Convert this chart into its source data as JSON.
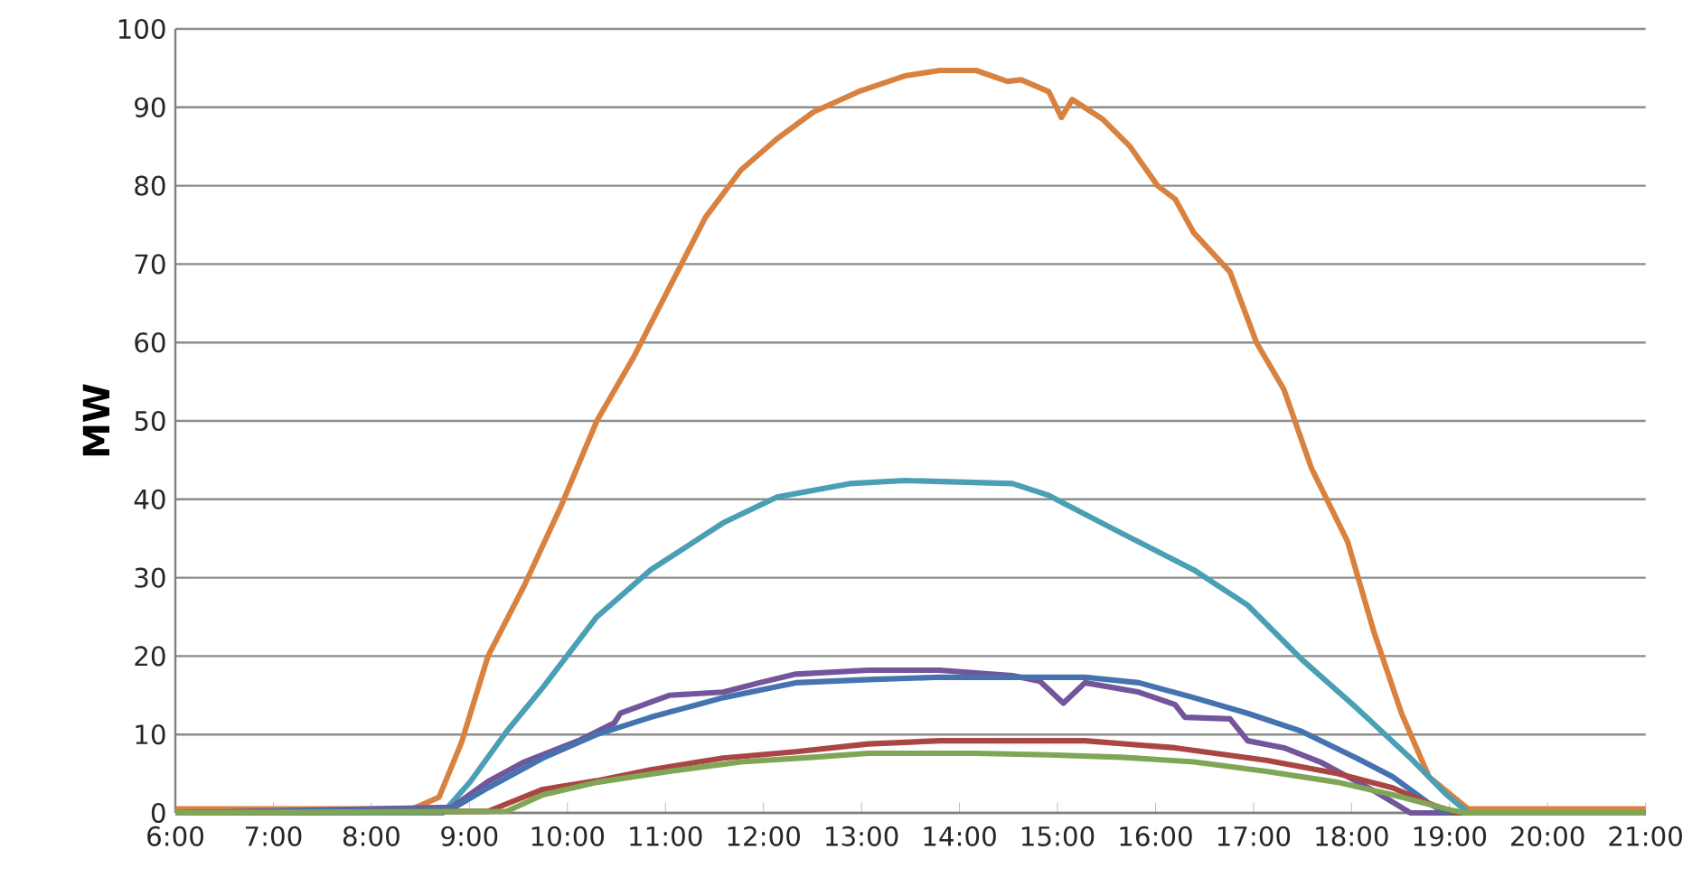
{
  "chart_data": {
    "type": "line",
    "ylabel": "MW",
    "grid": "y",
    "marker": "none",
    "line_style": "solid",
    "xlim": [
      6,
      21
    ],
    "ylim": [
      0,
      100
    ],
    "xticks": [
      {
        "value": 6,
        "label": "6:00"
      },
      {
        "value": 7,
        "label": "7:00"
      },
      {
        "value": 8,
        "label": "8:00"
      },
      {
        "value": 9,
        "label": "9:00"
      },
      {
        "value": 10,
        "label": "10:00"
      },
      {
        "value": 11,
        "label": "11:00"
      },
      {
        "value": 12,
        "label": "12:00"
      },
      {
        "value": 13,
        "label": "13:00"
      },
      {
        "value": 14,
        "label": "14:00"
      },
      {
        "value": 15,
        "label": "15:00"
      },
      {
        "value": 16,
        "label": "16:00"
      },
      {
        "value": 17,
        "label": "17:00"
      },
      {
        "value": 18,
        "label": "18:00"
      },
      {
        "value": 19,
        "label": "19:00"
      },
      {
        "value": 20,
        "label": "20:00"
      },
      {
        "value": 21,
        "label": "21:00"
      }
    ],
    "yticks": [
      0,
      10,
      20,
      30,
      40,
      50,
      60,
      70,
      80,
      90,
      100
    ],
    "series": [
      {
        "color": "#d9823f",
        "x": [
          6,
          8.42,
          8.69,
          8.92,
          9.19,
          9.56,
          9.93,
          10.3,
          10.67,
          11.04,
          11.41,
          11.77,
          12.14,
          12.51,
          12.97,
          13.44,
          13.8,
          14.17,
          14.49,
          14.63,
          14.91,
          15.04,
          15.15,
          15.46,
          15.74,
          16.02,
          16.2,
          16.39,
          16.76,
          17.03,
          17.31,
          17.59,
          17.96,
          18.23,
          18.51,
          18.79,
          19.19,
          21
        ],
        "values": [
          0.5,
          0.5,
          2,
          9,
          20,
          29,
          39,
          50,
          58,
          67,
          76,
          82,
          86,
          89.4,
          92,
          94,
          94.7,
          94.7,
          93.3,
          93.5,
          92,
          88.7,
          91,
          88.5,
          85,
          80,
          78.3,
          74,
          69,
          60,
          54,
          44,
          34.6,
          23,
          12.7,
          4.6,
          0.5,
          0.5
        ]
      },
      {
        "color": "#4a9fb5",
        "x": [
          6,
          8.73,
          9.01,
          9.38,
          9.75,
          10.3,
          10.85,
          11.59,
          12.14,
          12.88,
          13.44,
          14.54,
          14.91,
          15.65,
          16.39,
          16.94,
          17.49,
          18.05,
          18.6,
          18.97,
          19.19,
          21
        ],
        "values": [
          0,
          0,
          4,
          10.4,
          16,
          25,
          31,
          37,
          40.3,
          42,
          42.4,
          42,
          40.5,
          35.7,
          31,
          26.5,
          19.6,
          13.4,
          7,
          2.3,
          0,
          0
        ]
      },
      {
        "color": "#72559a",
        "x": [
          6,
          8.82,
          9.19,
          9.56,
          10.11,
          10.48,
          10.54,
          11.04,
          11.59,
          11.96,
          12.33,
          13.07,
          13.8,
          14.54,
          14.82,
          15.06,
          15.28,
          15.83,
          16.2,
          16.3,
          16.76,
          16.94,
          17.31,
          17.68,
          18.23,
          18.6,
          21
        ],
        "values": [
          0,
          0.7,
          4,
          6.5,
          9.2,
          11.5,
          12.7,
          15,
          15.4,
          16.6,
          17.7,
          18.2,
          18.2,
          17.5,
          16.8,
          14,
          16.6,
          15.4,
          13.8,
          12.2,
          12,
          9.2,
          8.3,
          6.5,
          2.8,
          0,
          0
        ]
      },
      {
        "color": "#4473b0",
        "x": [
          6,
          8.82,
          9.19,
          9.75,
          10.3,
          10.85,
          11.59,
          12.33,
          13.07,
          13.8,
          14.54,
          15.28,
          15.83,
          16.39,
          16.94,
          17.49,
          18.05,
          18.42,
          18.79,
          18.97,
          21
        ],
        "values": [
          0,
          0.5,
          3.2,
          7,
          10,
          12.2,
          14.7,
          16.6,
          17,
          17.3,
          17.3,
          17.3,
          16.6,
          14.7,
          12.7,
          10.4,
          7,
          4.6,
          1.2,
          0,
          0
        ]
      },
      {
        "color": "#a94643",
        "x": [
          6,
          9.19,
          9.47,
          9.75,
          10.3,
          10.85,
          11.59,
          12.33,
          13.07,
          13.8,
          14.54,
          15.28,
          16.2,
          17.13,
          17.86,
          18.42,
          18.79,
          19.06,
          21
        ],
        "values": [
          0,
          0.2,
          1.6,
          3,
          4.1,
          5.5,
          7,
          7.8,
          8.8,
          9.2,
          9.2,
          9.2,
          8.3,
          6.7,
          5,
          3.2,
          1.2,
          0,
          0
        ]
      },
      {
        "color": "#7fa656",
        "x": [
          6,
          9.38,
          9.75,
          10.3,
          11.04,
          11.77,
          12.51,
          13.07,
          14.17,
          14.91,
          15.65,
          16.39,
          17.13,
          17.86,
          18.42,
          18.97,
          19.15,
          21
        ],
        "values": [
          0,
          0.2,
          2.3,
          3.9,
          5.3,
          6.5,
          7.1,
          7.6,
          7.6,
          7.4,
          7.1,
          6.5,
          5.3,
          3.9,
          2.3,
          0.5,
          0,
          0
        ]
      }
    ]
  }
}
